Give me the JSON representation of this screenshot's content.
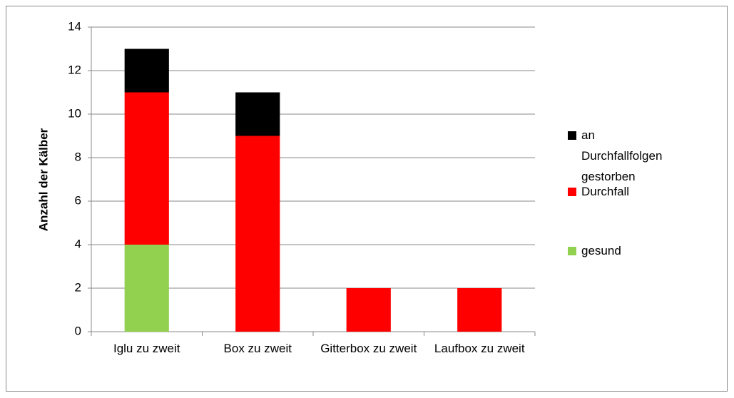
{
  "chart_data": {
    "type": "bar",
    "stacked": true,
    "y_label": "Anzahl der Kälber",
    "categories": [
      "Iglu zu zweit",
      "Box zu zweit",
      "Gitterbox zu zweit",
      "Laufbox zu zweit"
    ],
    "series": [
      {
        "name": "gesund",
        "color": "#92d050",
        "values": [
          4,
          0,
          0,
          0
        ]
      },
      {
        "name": "Durchfall",
        "color": "#ff0000",
        "values": [
          7,
          9,
          2,
          2
        ]
      },
      {
        "name": "an Durchfallfolgen gestorben",
        "color": "#000000",
        "values": [
          2,
          2,
          0,
          0
        ]
      }
    ],
    "ylim": [
      0,
      14
    ],
    "yticks": [
      0,
      2,
      4,
      6,
      8,
      10,
      12,
      14
    ],
    "grid": true,
    "legend": "right"
  }
}
